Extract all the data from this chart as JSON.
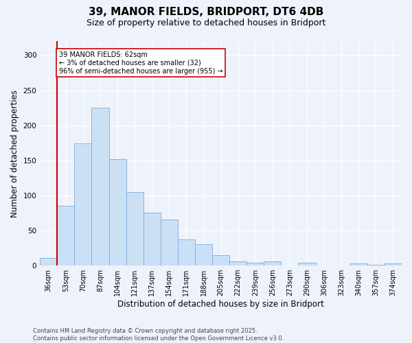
{
  "title1": "39, MANOR FIELDS, BRIDPORT, DT6 4DB",
  "title2": "Size of property relative to detached houses in Bridport",
  "xlabel": "Distribution of detached houses by size in Bridport",
  "ylabel": "Number of detached properties",
  "categories": [
    "36sqm",
    "53sqm",
    "70sqm",
    "87sqm",
    "104sqm",
    "121sqm",
    "137sqm",
    "154sqm",
    "171sqm",
    "188sqm",
    "205sqm",
    "222sqm",
    "239sqm",
    "256sqm",
    "273sqm",
    "290sqm",
    "306sqm",
    "323sqm",
    "340sqm",
    "357sqm",
    "374sqm"
  ],
  "values": [
    11,
    85,
    174,
    225,
    152,
    105,
    75,
    66,
    37,
    30,
    15,
    6,
    4,
    6,
    0,
    4,
    0,
    0,
    3,
    1,
    3
  ],
  "bar_color": "#cce0f5",
  "bar_edge_color": "#7aaadd",
  "vline_x": 1,
  "vline_color": "#cc0000",
  "annotation_text": "39 MANOR FIELDS: 62sqm\n← 3% of detached houses are smaller (32)\n96% of semi-detached houses are larger (955) →",
  "annotation_box_color": "#ffffff",
  "annotation_box_edge": "#cc0000",
  "ylim": [
    0,
    320
  ],
  "yticks": [
    0,
    50,
    100,
    150,
    200,
    250,
    300
  ],
  "bg_color": "#eef2fb",
  "footer": "Contains HM Land Registry data © Crown copyright and database right 2025.\nContains public sector information licensed under the Open Government Licence v3.0.",
  "title_fontsize": 11,
  "subtitle_fontsize": 9,
  "tick_fontsize": 7,
  "label_fontsize": 8.5,
  "footer_fontsize": 6
}
